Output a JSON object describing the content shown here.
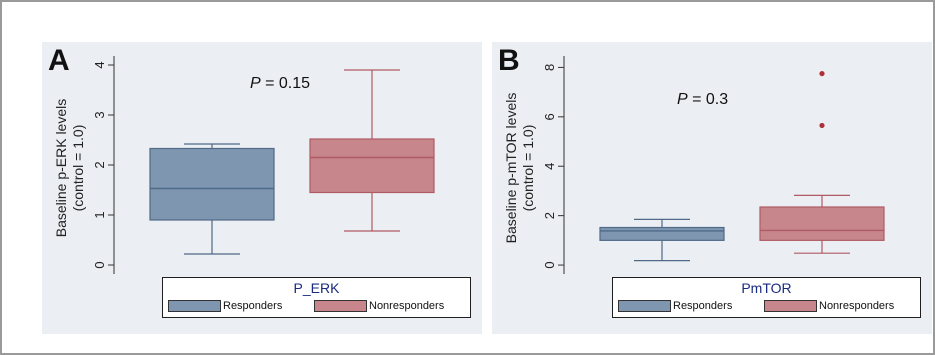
{
  "colors": {
    "responders_fill": "#7f96b0",
    "responders_line": "#4f6a88",
    "nonresponders_fill": "#c6868c",
    "nonresponders_line": "#b05a64",
    "panel_bg": "#ebeef2",
    "outlier": "#b0303a"
  },
  "chart_data": [
    {
      "type": "box",
      "panel_label": "A",
      "title": "",
      "annotation": {
        "text_prefix": "P",
        "text_suffix": " = 0.15"
      },
      "ylabel_lines": [
        "Baseline p-ERK levels",
        "(control = 1.0)"
      ],
      "ylim": [
        -0.1,
        4.1
      ],
      "yticks": [
        0,
        1,
        2,
        3,
        4
      ],
      "grid": false,
      "legend": {
        "title": "P_ERK",
        "placement": "bottom",
        "entries": [
          "Responders",
          "Nonresponders"
        ]
      },
      "series": [
        {
          "name": "Responders",
          "whisker_low": 0.22,
          "q1": 0.9,
          "median": 1.53,
          "q3": 2.33,
          "whisker_high": 2.42,
          "outliers": []
        },
        {
          "name": "Nonresponders",
          "whisker_low": 0.68,
          "q1": 1.45,
          "median": 2.15,
          "q3": 2.52,
          "whisker_high": 3.9,
          "outliers": []
        }
      ]
    },
    {
      "type": "box",
      "panel_label": "B",
      "title": "",
      "annotation": {
        "text_prefix": "P",
        "text_suffix": " = 0.3"
      },
      "ylabel_lines": [
        "Baseline p-mTOR levels",
        "(control = 1.0)"
      ],
      "ylim": [
        -0.2,
        8.3
      ],
      "yticks": [
        0,
        2,
        4,
        6,
        8
      ],
      "grid": false,
      "legend": {
        "title": "PmTOR",
        "placement": "bottom",
        "entries": [
          "Responders",
          "Nonresponders"
        ]
      },
      "series": [
        {
          "name": "Responders",
          "whisker_low": 0.18,
          "q1": 1.0,
          "median": 1.38,
          "q3": 1.52,
          "whisker_high": 1.85,
          "outliers": []
        },
        {
          "name": "Nonresponders",
          "whisker_low": 0.48,
          "q1": 1.0,
          "median": 1.4,
          "q3": 2.35,
          "whisker_high": 2.82,
          "outliers": [
            5.65,
            7.75
          ]
        }
      ]
    }
  ]
}
